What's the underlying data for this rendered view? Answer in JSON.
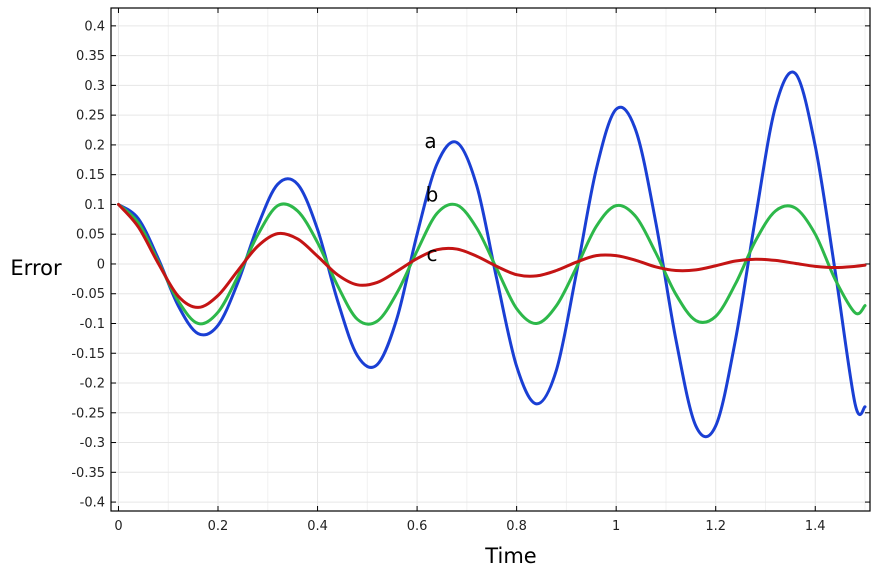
{
  "chart_data": {
    "type": "line",
    "title": "",
    "xlabel": "Time",
    "ylabel": "Error",
    "xlim": [
      -0.015,
      1.51
    ],
    "ylim": [
      -0.415,
      0.43
    ],
    "xticks": [
      0,
      0.2,
      0.4,
      0.6,
      0.8,
      1,
      1.2,
      1.4
    ],
    "xtick_labels": [
      "0",
      "0.2",
      "0.4",
      "0.6",
      "0.8",
      "1",
      "1.2",
      "1.4"
    ],
    "yticks": [
      -0.4,
      -0.35,
      -0.3,
      -0.25,
      -0.2,
      -0.15,
      -0.1,
      -0.05,
      0,
      0.05,
      0.1,
      0.15,
      0.2,
      0.25,
      0.3,
      0.35,
      0.4
    ],
    "ytick_labels": [
      "-0.4",
      "-0.35",
      "-0.3",
      "-0.25",
      "-0.2",
      "-0.15",
      "-0.1",
      "-0.05",
      "0",
      "0.05",
      "0.1",
      "0.15",
      "0.2",
      "0.25",
      "0.3",
      "0.35",
      "0.4"
    ],
    "grid": true,
    "x": [
      0,
      0.04,
      0.08,
      0.12,
      0.16,
      0.2,
      0.24,
      0.28,
      0.32,
      0.36,
      0.4,
      0.44,
      0.48,
      0.52,
      0.56,
      0.6,
      0.64,
      0.68,
      0.72,
      0.76,
      0.8,
      0.84,
      0.88,
      0.92,
      0.96,
      1.0,
      1.04,
      1.08,
      1.12,
      1.16,
      1.2,
      1.24,
      1.28,
      1.32,
      1.36,
      1.4,
      1.44,
      1.48,
      1.5
    ],
    "series": [
      {
        "name": "a",
        "color": "#1a3fd4",
        "values": [
          0.1,
          0.076,
          0.009,
          -0.07,
          -0.117,
          -0.103,
          -0.031,
          0.064,
          0.134,
          0.134,
          0.058,
          -0.061,
          -0.154,
          -0.169,
          -0.09,
          0.05,
          0.168,
          0.204,
          0.131,
          -0.025,
          -0.172,
          -0.235,
          -0.178,
          -0.016,
          0.159,
          0.26,
          0.223,
          0.068,
          -0.127,
          -0.272,
          -0.272,
          -0.126,
          0.078,
          0.264,
          0.32,
          0.198,
          -0.012,
          -0.235,
          -0.24
        ]
      },
      {
        "name": "b",
        "color": "#2db84a",
        "values": [
          0.1,
          0.069,
          0.004,
          -0.062,
          -0.1,
          -0.081,
          -0.021,
          0.049,
          0.098,
          0.089,
          0.036,
          -0.036,
          -0.093,
          -0.096,
          -0.048,
          0.022,
          0.085,
          0.099,
          0.06,
          -0.008,
          -0.075,
          -0.1,
          -0.07,
          -0.006,
          0.063,
          0.098,
          0.079,
          0.018,
          -0.051,
          -0.095,
          -0.088,
          -0.033,
          0.039,
          0.089,
          0.094,
          0.05,
          -0.026,
          -0.082,
          -0.07
        ]
      },
      {
        "name": "c",
        "color": "#c41414",
        "values": [
          0.1,
          0.062,
          0.001,
          -0.054,
          -0.073,
          -0.053,
          -0.011,
          0.03,
          0.051,
          0.042,
          0.013,
          -0.018,
          -0.035,
          -0.031,
          -0.012,
          0.009,
          0.024,
          0.025,
          0.013,
          -0.004,
          -0.018,
          -0.02,
          -0.011,
          0.003,
          0.014,
          0.014,
          0.006,
          -0.005,
          -0.011,
          -0.01,
          -0.003,
          0.005,
          0.008,
          0.006,
          0.001,
          -0.004,
          -0.006,
          -0.004,
          -0.002
        ]
      }
    ],
    "annotations": [
      {
        "text": "a",
        "x": 0.627,
        "y": 0.195
      },
      {
        "text": "b",
        "x": 0.63,
        "y": 0.105
      },
      {
        "text": "c",
        "x": 0.63,
        "y": 0.005
      }
    ]
  }
}
